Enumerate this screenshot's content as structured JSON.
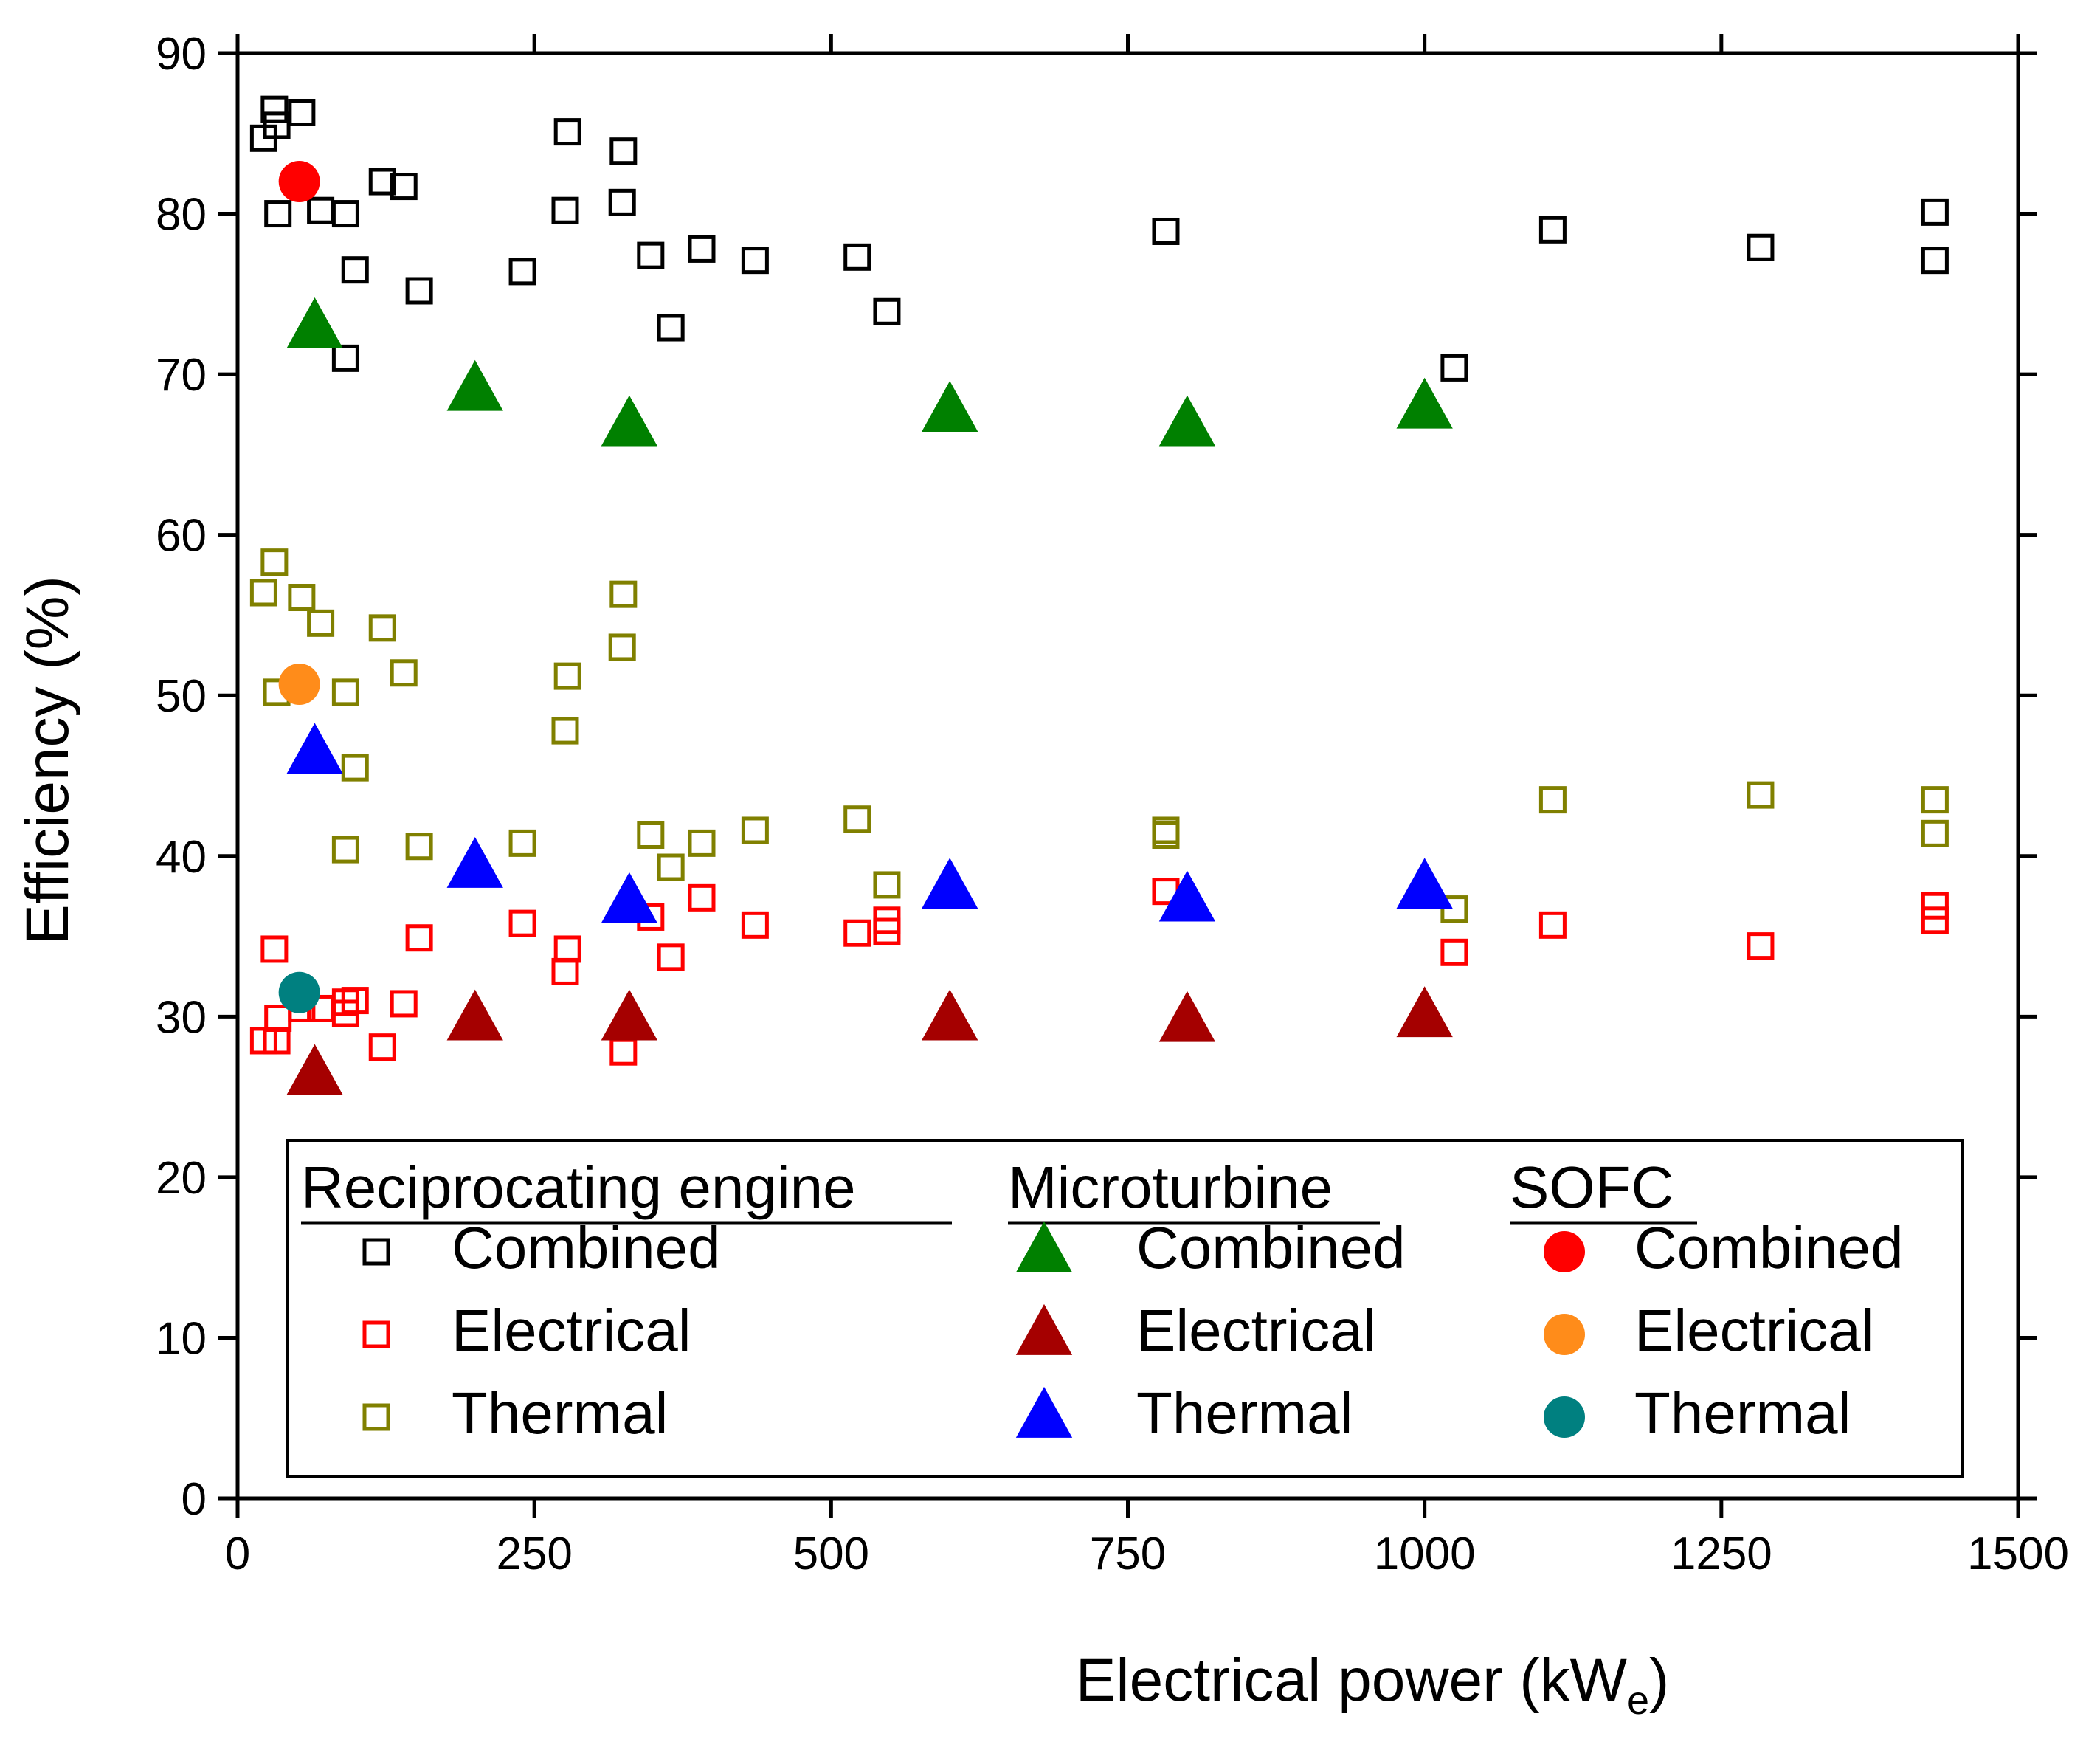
{
  "chart_data": {
    "type": "scatter",
    "title": "",
    "xlabel": "Electrical power (kW",
    "xlabel_subscript": "e",
    "xlabel_close": ")",
    "ylabel": "Efficiency (%)",
    "xlim": [
      0,
      1500
    ],
    "ylim": [
      0,
      90
    ],
    "xticks": [
      0,
      250,
      500,
      750,
      1000,
      1250,
      1500
    ],
    "xtick_labels": [
      "0",
      "250",
      "500",
      "750",
      "1000",
      "1250",
      "1500"
    ],
    "yticks": [
      0,
      10,
      20,
      30,
      40,
      50,
      60,
      70,
      80,
      90
    ],
    "ytick_labels": [
      "0",
      "10",
      "20",
      "30",
      "40",
      "50",
      "60",
      "70",
      "80",
      "90"
    ],
    "grid": false,
    "legend_position": "bottom",
    "legend": {
      "groups": [
        {
          "title": "Reciprocating engine",
          "entries": [
            "Combined",
            "Electrical",
            "Thermal"
          ]
        },
        {
          "title": "Microturbine",
          "entries": [
            "Combined",
            "Electrical",
            "Thermal"
          ]
        },
        {
          "title": "SOFC",
          "entries": [
            "Combined",
            "Electrical",
            "Thermal"
          ]
        }
      ]
    },
    "series": [
      {
        "group": "Reciprocating engine",
        "name": "Combined",
        "marker": "square-open",
        "color": "#000000",
        "points": [
          [
            22,
            84.7
          ],
          [
            31,
            86.5
          ],
          [
            33,
            85.5
          ],
          [
            34,
            80
          ],
          [
            54,
            86.3
          ],
          [
            70,
            80.2
          ],
          [
            91,
            80
          ],
          [
            91,
            71
          ],
          [
            99,
            76.5
          ],
          [
            122,
            82
          ],
          [
            140,
            81.7
          ],
          [
            153,
            75.2
          ],
          [
            240,
            76.4
          ],
          [
            276,
            80.2
          ],
          [
            278,
            85.1
          ],
          [
            324,
            80.7
          ],
          [
            325,
            83.9
          ],
          [
            348,
            77.4
          ],
          [
            365,
            72.9
          ],
          [
            391,
            77.8
          ],
          [
            436,
            77.1
          ],
          [
            522,
            77.3
          ],
          [
            547,
            73.9
          ],
          [
            782,
            78.9
          ],
          [
            1025,
            70.4
          ],
          [
            1108,
            79
          ],
          [
            1283,
            77.9
          ],
          [
            1430,
            80.1
          ],
          [
            1430,
            77.1
          ]
        ]
      },
      {
        "group": "Reciprocating engine",
        "name": "Electrical",
        "marker": "square-open",
        "color": "#ff0000",
        "points": [
          [
            22,
            28.5
          ],
          [
            31,
            34.2
          ],
          [
            33,
            28.5
          ],
          [
            34,
            29.9
          ],
          [
            54,
            30.5
          ],
          [
            70,
            30.5
          ],
          [
            91,
            30.2
          ],
          [
            91,
            30.9
          ],
          [
            99,
            31
          ],
          [
            122,
            28.1
          ],
          [
            140,
            30.8
          ],
          [
            153,
            34.9
          ],
          [
            240,
            35.8
          ],
          [
            276,
            32.8
          ],
          [
            278,
            34.2
          ],
          [
            325,
            27.8
          ],
          [
            348,
            36.2
          ],
          [
            365,
            33.7
          ],
          [
            391,
            37.4
          ],
          [
            436,
            35.7
          ],
          [
            522,
            35.2
          ],
          [
            547,
            35.3
          ],
          [
            547,
            36
          ],
          [
            782,
            37.8
          ],
          [
            1025,
            34
          ],
          [
            1108,
            35.7
          ],
          [
            1283,
            34.4
          ],
          [
            1430,
            36
          ],
          [
            1430,
            36.9
          ]
        ]
      },
      {
        "group": "Reciprocating engine",
        "name": "Thermal",
        "marker": "square-open",
        "color": "#808000",
        "points": [
          [
            22,
            56.4
          ],
          [
            31,
            58.3
          ],
          [
            33,
            50.2
          ],
          [
            54,
            56.1
          ],
          [
            70,
            54.5
          ],
          [
            91,
            40.4
          ],
          [
            91,
            50.2
          ],
          [
            99,
            45.5
          ],
          [
            122,
            54.2
          ],
          [
            140,
            51.4
          ],
          [
            153,
            40.6
          ],
          [
            240,
            40.8
          ],
          [
            276,
            47.8
          ],
          [
            278,
            51.2
          ],
          [
            324,
            53
          ],
          [
            325,
            56.3
          ],
          [
            348,
            41.3
          ],
          [
            365,
            39.3
          ],
          [
            391,
            40.8
          ],
          [
            436,
            41.6
          ],
          [
            522,
            42.3
          ],
          [
            547,
            38.2
          ],
          [
            782,
            41.6
          ],
          [
            782,
            41.3
          ],
          [
            1025,
            36.7
          ],
          [
            1108,
            43.5
          ],
          [
            1283,
            43.8
          ],
          [
            1430,
            43.5
          ],
          [
            1430,
            41.4
          ]
        ]
      },
      {
        "group": "Microturbine",
        "name": "Combined",
        "marker": "triangle",
        "color": "#008000",
        "points": [
          [
            65,
            72.9
          ],
          [
            200,
            69
          ],
          [
            330,
            66.8
          ],
          [
            600,
            67.7
          ],
          [
            800,
            66.8
          ],
          [
            1000,
            67.9
          ]
        ]
      },
      {
        "group": "Microturbine",
        "name": "Electrical",
        "marker": "triangle",
        "color": "#a50000",
        "points": [
          [
            65,
            26.4
          ],
          [
            200,
            29.8
          ],
          [
            330,
            29.8
          ],
          [
            600,
            29.8
          ],
          [
            800,
            29.7
          ],
          [
            1000,
            30
          ]
        ]
      },
      {
        "group": "Microturbine",
        "name": "Thermal",
        "marker": "triangle",
        "color": "#0000ff",
        "points": [
          [
            65,
            46.4
          ],
          [
            200,
            39.3
          ],
          [
            330,
            37.1
          ],
          [
            600,
            38
          ],
          [
            800,
            37.2
          ],
          [
            1000,
            38
          ]
        ]
      },
      {
        "group": "SOFC",
        "name": "Combined",
        "marker": "circle",
        "color": "#ff0000",
        "points": [
          [
            52,
            82
          ]
        ]
      },
      {
        "group": "SOFC",
        "name": "Electrical",
        "marker": "circle",
        "color": "#ff8c1a",
        "points": [
          [
            52,
            50.7
          ]
        ]
      },
      {
        "group": "SOFC",
        "name": "Thermal",
        "marker": "circle",
        "color": "#008080",
        "points": [
          [
            52,
            31.5
          ]
        ]
      }
    ]
  }
}
